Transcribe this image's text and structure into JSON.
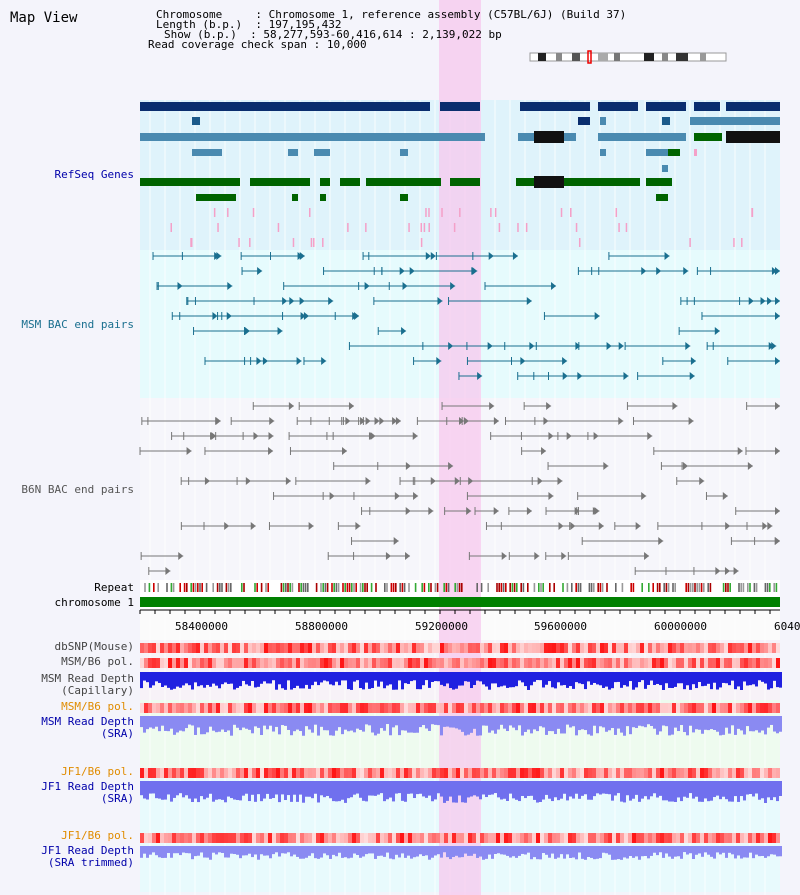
{
  "app": {
    "title": "Map View"
  },
  "info": {
    "chromosome_label": "Chromosome",
    "chromosome_value": "Chromosome 1, reference assembly (C57BL/6J) (Build 37)",
    "length_label": "Length (b.p.)",
    "length_value": "197,195,432",
    "show_label": "Show (b.p.)",
    "show_value": "58,277,593-60,416,614 : 2,139,022 bp",
    "coverage_label": "Read coverage check span",
    "coverage_value": "10,000"
  },
  "tracks": {
    "refseq": "RefSeq Genes",
    "msm_bac": "MSM BAC end pairs",
    "b6n_bac": "B6N BAC end pairs",
    "repeat": "Repeat",
    "chromosome": "chromosome 1",
    "dbsnp": "dbSNP(Mouse)",
    "msm_b6_pol": "MSM/B6 pol.",
    "msm_read_depth_cap_1": "MSM Read Depth",
    "msm_read_depth_cap_2": "(Capillary)",
    "msm_b6_pol_2": "MSM/B6 pol.",
    "msm_read_depth_sra_1": "MSM Read Depth",
    "msm_read_depth_sra_2": "(SRA)",
    "jf1_b6_pol": "JF1/B6 pol.",
    "jf1_read_depth_sra_1": "JF1 Read Depth",
    "jf1_read_depth_sra_2": "(SRA)",
    "jf1_b6_pol_2": "JF1/B6 pol.",
    "jf1_read_depth_trim_1": "JF1 Read Depth",
    "jf1_read_depth_trim_2": "(SRA trimmed)"
  },
  "axis": {
    "ticks": [
      "58400000",
      "58800000",
      "59200000",
      "59600000",
      "60000000",
      "6040"
    ]
  },
  "colors": {
    "refseq_dark": "#0a2e6e",
    "refseq_mid": "#4a8ab0",
    "refseq_green": "#006400",
    "msm_line": "#1a6f8f",
    "b6n_line": "#777777",
    "highlight": "#f7c8ee",
    "chromosome_bar": "#008000",
    "depth_blue": "#2020e0",
    "depth_light": "#8080f0",
    "label_blue": "#0000aa",
    "label_teal": "#1a6f8f",
    "label_orange": "#e08c00"
  }
}
